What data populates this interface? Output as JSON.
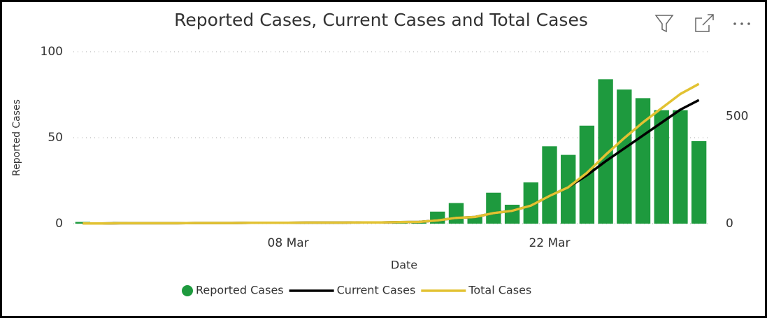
{
  "chart_data": {
    "type": "bar_line",
    "title": "Reported Cases, Current Cases and Total Cases",
    "x_label": "Date",
    "y_label": "Reported Cases",
    "categories": [
      null,
      null,
      null,
      null,
      null,
      null,
      null,
      null,
      null,
      null,
      null,
      "08 Mar",
      null,
      null,
      null,
      null,
      null,
      null,
      null,
      null,
      null,
      null,
      null,
      null,
      null,
      "22 Mar",
      null,
      null,
      null,
      null,
      null,
      null,
      null,
      null
    ],
    "ylim": [
      0,
      100
    ],
    "yticks": [
      0,
      50,
      100
    ],
    "y2lim": [
      0,
      800
    ],
    "y2ticks": [
      0,
      500
    ],
    "grid": true,
    "series": [
      {
        "name": "Reported Cases",
        "color": "#1e9a3e",
        "kind": "bar",
        "values": [
          1,
          0,
          1,
          0,
          0,
          0,
          1,
          0,
          0,
          1,
          0,
          0,
          1,
          0,
          0,
          1,
          0,
          1,
          1,
          7,
          12,
          4,
          18,
          11,
          24,
          45,
          40,
          57,
          84,
          78,
          73,
          66,
          66,
          48
        ]
      },
      {
        "name": "Current Cases",
        "color": "#000000",
        "kind": "line",
        "axis": "y2",
        "values": [
          1,
          1,
          2,
          2,
          2,
          2,
          3,
          3,
          3,
          4,
          4,
          4,
          5,
          5,
          5,
          6,
          6,
          7,
          8,
          15,
          27,
          31,
          49,
          60,
          84,
          129,
          169,
          225,
          290,
          350,
          410,
          470,
          530,
          575
        ]
      },
      {
        "name": "Total Cases",
        "color": "#e2c232",
        "kind": "line",
        "axis": "y2",
        "values": [
          1,
          1,
          2,
          2,
          2,
          2,
          3,
          3,
          3,
          4,
          4,
          4,
          5,
          5,
          5,
          6,
          6,
          7,
          8,
          15,
          27,
          31,
          49,
          60,
          84,
          129,
          169,
          236,
          320,
          398,
          471,
          537,
          603,
          650
        ]
      }
    ]
  }
}
